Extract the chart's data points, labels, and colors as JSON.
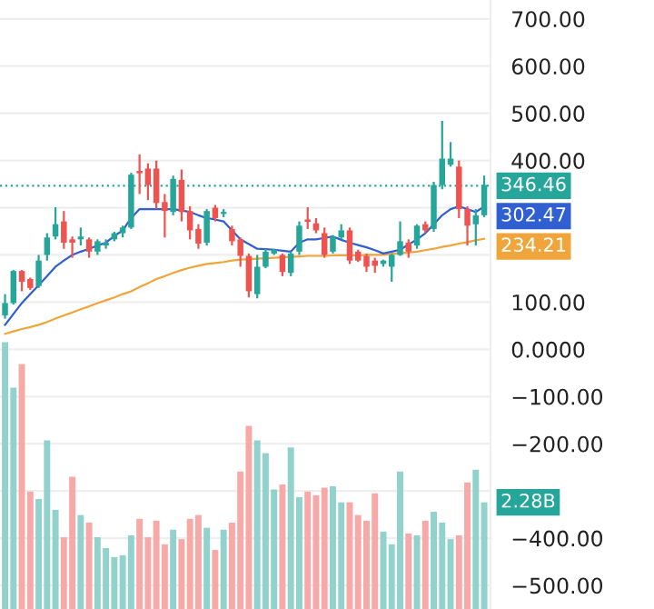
{
  "chart_data": {
    "type": "candlestick",
    "categories": [
      null,
      null,
      null,
      null,
      null,
      null,
      null,
      null,
      null,
      null,
      null,
      null,
      null,
      null,
      null,
      null,
      null,
      null,
      null,
      null,
      null,
      null,
      null,
      null,
      null,
      null,
      null,
      null,
      null,
      null,
      null,
      null,
      null,
      null,
      null,
      null,
      null,
      null,
      null,
      null,
      null,
      null,
      null,
      null,
      null,
      null,
      null,
      null,
      null,
      null,
      null,
      null,
      null,
      null,
      null,
      null,
      null,
      null
    ],
    "ylim": [
      -550,
      740
    ],
    "yticks": [
      {
        "value": 700,
        "label": "700.00"
      },
      {
        "value": 600,
        "label": "600.00"
      },
      {
        "value": 500,
        "label": "500.00"
      },
      {
        "value": 400,
        "label": "400.00"
      },
      {
        "value": 300,
        "label": null
      },
      {
        "value": 200,
        "label": null
      },
      {
        "value": 100,
        "label": "100.00"
      },
      {
        "value": 0,
        "label": "0.0000"
      },
      {
        "value": -100,
        "label": "−100.00"
      },
      {
        "value": -200,
        "label": "−200.00"
      },
      {
        "value": -300,
        "label": null
      },
      {
        "value": -400,
        "label": "−400.00"
      },
      {
        "value": -500,
        "label": "−500.00"
      }
    ],
    "tick_labels": "y",
    "grid": "y",
    "annotations": [
      "2.28B"
    ],
    "ref_lines": [
      {
        "axis": "y",
        "value": 346.46,
        "label": "346.46",
        "color": "#26a69a",
        "line_style": "dotted"
      }
    ],
    "series": [
      {
        "type": "bar",
        "base": [
          -550,
          -550,
          -550,
          -550,
          -550,
          -550,
          -550,
          -550,
          -550,
          -550,
          -550,
          -550,
          -550,
          -550,
          -550,
          -550,
          -550,
          -550,
          -550,
          -550,
          -550,
          -550,
          -550,
          -550,
          -550,
          -550,
          -550,
          -550,
          -550,
          -550,
          -550,
          -550,
          -550,
          -550,
          -550,
          -550,
          -550,
          -550,
          -550,
          -550,
          -550,
          -550,
          -550,
          -550,
          -550,
          -550,
          -550,
          -550,
          -550,
          -550,
          -550,
          -550,
          -550,
          -550,
          -550,
          -550,
          -550,
          -550
        ],
        "values": [
          565,
          469,
          519,
          249,
          233,
          357,
          210,
          152,
          280,
          199,
          183,
          152,
          129,
          110,
          114,
          156,
          191,
          152,
          187,
          137,
          168,
          148,
          191,
          199,
          172,
          125,
          168,
          183,
          291,
          388,
          357,
          330,
          253,
          264,
          342,
          237,
          249,
          241,
          257,
          260,
          226,
          226,
          199,
          187,
          245,
          164,
          137,
          291,
          160,
          156,
          187,
          206,
          183,
          148,
          156,
          268,
          295,
          226
        ],
        "colors": [
          "#92d2cc",
          "#92d2cc",
          "#f7a9a7",
          "#f7a9a7",
          "#92d2cc",
          "#92d2cc",
          "#92d2cc",
          "#f7a9a7",
          "#f7a9a7",
          "#92d2cc",
          "#f7a9a7",
          "#92d2cc",
          "#92d2cc",
          "#92d2cc",
          "#92d2cc",
          "#92d2cc",
          "#f7a9a7",
          "#f7a9a7",
          "#f7a9a7",
          "#f7a9a7",
          "#92d2cc",
          "#f7a9a7",
          "#f7a9a7",
          "#f7a9a7",
          "#92d2cc",
          "#f7a9a7",
          "#92d2cc",
          "#f7a9a7",
          "#f7a9a7",
          "#f7a9a7",
          "#92d2cc",
          "#92d2cc",
          "#92d2cc",
          "#f7a9a7",
          "#92d2cc",
          "#92d2cc",
          "#f7a9a7",
          "#f7a9a7",
          "#f7a9a7",
          "#92d2cc",
          "#92d2cc",
          "#f7a9a7",
          "#f7a9a7",
          "#f7a9a7",
          "#f7a9a7",
          "#92d2cc",
          "#92d2cc",
          "#92d2cc",
          "#f7a9a7",
          "#92d2cc",
          "#f7a9a7",
          "#92d2cc",
          "#92d2cc",
          "#92d2cc",
          "#f7a9a7",
          "#f7a9a7",
          "#92d2cc",
          "#92d2cc"
        ]
      },
      {
        "type": "line",
        "color": "#f0a53a",
        "values": [
          33,
          38,
          43,
          47,
          52,
          58,
          65,
          72,
          78,
          85,
          91,
          98,
          104,
          110,
          117,
          123,
          132,
          140,
          149,
          155,
          162,
          168,
          173,
          177,
          181,
          183,
          185,
          188,
          190,
          191,
          192,
          193,
          194,
          195,
          196,
          197,
          198,
          198,
          198,
          199,
          199,
          199,
          199,
          200,
          200,
          200,
          202,
          204,
          205,
          207,
          210,
          213,
          217,
          220,
          224,
          227,
          231,
          234.21
        ],
        "value_labels": [
          null,
          null,
          null,
          null,
          null,
          null,
          null,
          null,
          null,
          null,
          null,
          null,
          null,
          null,
          null,
          null,
          null,
          null,
          null,
          null,
          null,
          null,
          null,
          null,
          null,
          null,
          null,
          null,
          null,
          null,
          null,
          null,
          null,
          null,
          null,
          null,
          null,
          null,
          null,
          null,
          null,
          null,
          null,
          null,
          null,
          null,
          null,
          null,
          null,
          null,
          null,
          null,
          null,
          null,
          null,
          null,
          null,
          "234.21"
        ]
      },
      {
        "type": "line",
        "color": "#2f5fd0",
        "values": [
          52,
          75,
          98,
          117,
          136,
          155,
          175,
          188,
          200,
          207,
          213,
          220,
          226,
          240,
          252,
          278,
          297,
          297,
          297,
          297,
          297,
          294,
          291,
          284,
          278,
          275,
          271,
          252,
          233,
          223,
          213,
          212,
          211,
          209,
          207,
          226,
          233,
          233,
          236,
          239,
          232,
          226,
          221,
          216,
          210,
          203,
          207,
          211,
          222,
          233,
          246,
          265,
          284,
          297,
          303,
          297,
          291,
          302.47
        ],
        "value_labels": [
          null,
          null,
          null,
          null,
          null,
          null,
          null,
          null,
          null,
          null,
          null,
          null,
          null,
          null,
          null,
          null,
          null,
          null,
          null,
          null,
          null,
          null,
          null,
          null,
          null,
          null,
          null,
          null,
          null,
          null,
          null,
          null,
          null,
          null,
          null,
          null,
          null,
          null,
          null,
          null,
          null,
          null,
          null,
          null,
          null,
          null,
          null,
          null,
          null,
          null,
          null,
          null,
          null,
          null,
          null,
          null,
          null,
          "302.47"
        ]
      },
      {
        "colors": [
          "#26a69a",
          "#26a69a",
          "#ef5350",
          "#ef5350",
          "#26a69a",
          "#26a69a",
          "#26a69a",
          "#ef5350",
          "#ef5350",
          "#26a69a",
          "#ef5350",
          "#26a69a",
          "#26a69a",
          "#26a69a",
          "#26a69a",
          "#26a69a",
          "#ef5350",
          "#ef5350",
          "#ef5350",
          "#ef5350",
          "#26a69a",
          "#ef5350",
          "#ef5350",
          "#ef5350",
          "#26a69a",
          "#ef5350",
          "#26a69a",
          "#ef5350",
          "#ef5350",
          "#ef5350",
          "#26a69a",
          "#26a69a",
          "#26a69a",
          "#ef5350",
          "#26a69a",
          "#26a69a",
          "#ef5350",
          "#ef5350",
          "#ef5350",
          "#26a69a",
          "#26a69a",
          "#ef5350",
          "#ef5350",
          "#ef5350",
          "#ef5350",
          "#26a69a",
          "#26a69a",
          "#26a69a",
          "#ef5350",
          "#26a69a",
          "#ef5350",
          "#26a69a",
          "#26a69a",
          "#26a69a",
          "#ef5350",
          "#ef5350",
          "#26a69a",
          "#26a69a"
        ],
        "ohlc": [
          [
            72,
            117,
            65,
            98
          ],
          [
            98,
            168,
            95,
            166
          ],
          [
            166,
            168,
            123,
            143
          ],
          [
            149,
            152,
            126,
            130
          ],
          [
            134,
            200,
            130,
            188
          ],
          [
            200,
            246,
            188,
            237
          ],
          [
            239,
            301,
            233,
            265
          ],
          [
            271,
            293,
            213,
            226
          ],
          [
            233,
            239,
            194,
            226
          ],
          [
            233,
            258,
            220,
            239
          ],
          [
            233,
            237,
            194,
            207
          ],
          [
            207,
            233,
            200,
            229
          ],
          [
            220,
            233,
            213,
            226
          ],
          [
            233,
            249,
            229,
            246
          ],
          [
            246,
            262,
            237,
            258
          ],
          [
            258,
            374,
            255,
            370
          ],
          [
            378,
            413,
            329,
            373
          ],
          [
            383,
            394,
            316,
            348
          ],
          [
            383,
            400,
            297,
            310
          ],
          [
            312,
            329,
            237,
            293
          ],
          [
            291,
            368,
            284,
            361
          ],
          [
            359,
            381,
            271,
            291
          ],
          [
            293,
            303,
            233,
            252
          ],
          [
            255,
            265,
            213,
            224
          ],
          [
            226,
            297,
            220,
            293
          ],
          [
            300,
            306,
            271,
            278
          ],
          [
            287,
            297,
            280,
            291
          ],
          [
            255,
            262,
            220,
            229
          ],
          [
            233,
            237,
            175,
            198
          ],
          [
            198,
            203,
            110,
            123
          ],
          [
            117,
            200,
            108,
            175
          ],
          [
            175,
            213,
            172,
            207
          ],
          [
            203,
            213,
            200,
            211
          ],
          [
            200,
            203,
            155,
            164
          ],
          [
            162,
            207,
            155,
            203
          ],
          [
            207,
            271,
            200,
            262
          ],
          [
            275,
            301,
            255,
            270
          ],
          [
            267,
            278,
            246,
            252
          ],
          [
            246,
            258,
            194,
            200
          ],
          [
            207,
            242,
            203,
            239
          ],
          [
            237,
            265,
            233,
            252
          ],
          [
            252,
            258,
            181,
            188
          ],
          [
            207,
            211,
            185,
            188
          ],
          [
            198,
            203,
            164,
            175
          ],
          [
            188,
            194,
            162,
            177
          ],
          [
            181,
            190,
            175,
            188
          ],
          [
            175,
            203,
            143,
            200
          ],
          [
            200,
            271,
            198,
            229
          ],
          [
            226,
            233,
            194,
            207
          ],
          [
            220,
            265,
            213,
            262
          ],
          [
            265,
            271,
            246,
            252
          ],
          [
            255,
            355,
            249,
            348
          ],
          [
            348,
            484,
            339,
            404
          ],
          [
            391,
            439,
            387,
            404
          ],
          [
            387,
            400,
            278,
            297
          ],
          [
            297,
            303,
            220,
            262
          ],
          [
            265,
            297,
            220,
            284
          ],
          [
            284,
            368,
            280,
            348
          ]
        ]
      }
    ]
  }
}
